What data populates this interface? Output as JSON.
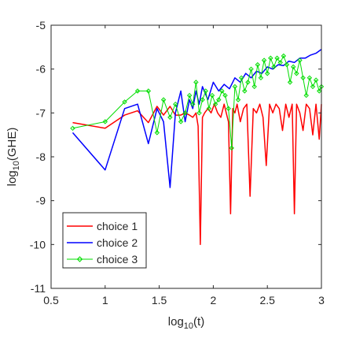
{
  "chart_data": {
    "type": "line",
    "xlabel_base": "log",
    "xlabel_sub": "10",
    "xlabel_rest": "(t)",
    "ylabel_base": "log",
    "ylabel_sub": "10",
    "ylabel_rest": "(GHE)",
    "xlim": [
      0.5,
      3
    ],
    "ylim": [
      -11,
      -5
    ],
    "xticks": [
      "0.5",
      "1",
      "1.5",
      "2",
      "2.5",
      "3"
    ],
    "xtick_values": [
      0.5,
      1,
      1.5,
      2,
      2.5,
      3
    ],
    "yticks": [
      "-5",
      "-6",
      "-7",
      "-8",
      "-9",
      "-10",
      "-11"
    ],
    "ytick_values": [
      -5,
      -6,
      -7,
      -8,
      -9,
      -10,
      -11
    ],
    "grid": false,
    "legend_position": "bottom-left",
    "series": [
      {
        "name": "choice 1",
        "color": "#ff0000",
        "marker": "none",
        "x": [
          0.7,
          1.0,
          1.18,
          1.3,
          1.4,
          1.48,
          1.54,
          1.6,
          1.65,
          1.7,
          1.74,
          1.78,
          1.81,
          1.84,
          1.86,
          1.88,
          1.9,
          1.92,
          1.95,
          1.98,
          2.01,
          2.04,
          2.07,
          2.1,
          2.12,
          2.14,
          2.16,
          2.18,
          2.2,
          2.22,
          2.25,
          2.28,
          2.31,
          2.34,
          2.37,
          2.4,
          2.43,
          2.46,
          2.49,
          2.52,
          2.55,
          2.58,
          2.61,
          2.64,
          2.67,
          2.7,
          2.73,
          2.75,
          2.77,
          2.8,
          2.83,
          2.86,
          2.89,
          2.92,
          2.95,
          2.98,
          3.0
        ],
        "y": [
          -7.22,
          -7.35,
          -7.05,
          -6.95,
          -7.22,
          -6.85,
          -7.05,
          -6.85,
          -7.05,
          -7.05,
          -7.0,
          -7.05,
          -7.1,
          -7.0,
          -7.3,
          -10.0,
          -7.1,
          -7.0,
          -6.9,
          -7.0,
          -6.8,
          -7.0,
          -7.1,
          -6.8,
          -7.0,
          -7.2,
          -9.3,
          -6.9,
          -7.0,
          -6.8,
          -7.2,
          -6.9,
          -6.8,
          -8.9,
          -6.9,
          -7.0,
          -6.8,
          -7.1,
          -8.2,
          -6.8,
          -7.0,
          -6.8,
          -6.9,
          -7.4,
          -6.8,
          -7.1,
          -6.8,
          -9.3,
          -6.8,
          -7.0,
          -7.4,
          -6.8,
          -6.9,
          -7.5,
          -6.8,
          -7.6,
          -6.8
        ]
      },
      {
        "name": "choice 2",
        "color": "#0000ff",
        "marker": "none",
        "x": [
          0.7,
          1.0,
          1.18,
          1.3,
          1.4,
          1.48,
          1.54,
          1.6,
          1.65,
          1.7,
          1.74,
          1.78,
          1.81,
          1.84,
          1.87,
          1.9,
          1.95,
          2.0,
          2.05,
          2.1,
          2.15,
          2.2,
          2.25,
          2.3,
          2.35,
          2.4,
          2.45,
          2.5,
          2.55,
          2.6,
          2.65,
          2.7,
          2.75,
          2.8,
          2.85,
          2.9,
          2.95,
          3.0
        ],
        "y": [
          -7.45,
          -8.3,
          -6.9,
          -6.8,
          -7.7,
          -6.9,
          -7.2,
          -8.7,
          -7.0,
          -6.5,
          -7.2,
          -6.7,
          -6.9,
          -6.5,
          -6.8,
          -6.4,
          -6.7,
          -6.3,
          -6.5,
          -6.35,
          -6.45,
          -6.2,
          -6.3,
          -6.1,
          -6.2,
          -6.05,
          -6.1,
          -5.95,
          -6.0,
          -5.9,
          -5.92,
          -5.82,
          -5.85,
          -5.75,
          -5.75,
          -5.68,
          -5.64,
          -5.55
        ]
      },
      {
        "name": "choice 3",
        "color": "#00dd00",
        "marker": "diamond",
        "x": [
          0.7,
          1.0,
          1.18,
          1.3,
          1.4,
          1.48,
          1.54,
          1.6,
          1.65,
          1.7,
          1.74,
          1.78,
          1.81,
          1.84,
          1.87,
          1.9,
          1.93,
          1.96,
          1.99,
          2.02,
          2.05,
          2.08,
          2.11,
          2.14,
          2.17,
          2.2,
          2.23,
          2.26,
          2.29,
          2.32,
          2.35,
          2.38,
          2.41,
          2.44,
          2.47,
          2.5,
          2.53,
          2.56,
          2.59,
          2.62,
          2.65,
          2.68,
          2.71,
          2.74,
          2.77,
          2.8,
          2.83,
          2.86,
          2.89,
          2.92,
          2.95,
          2.98,
          3.0
        ],
        "y": [
          -7.35,
          -7.2,
          -6.75,
          -6.5,
          -6.5,
          -7.45,
          -6.7,
          -7.1,
          -6.8,
          -7.2,
          -7.0,
          -6.6,
          -6.8,
          -6.3,
          -7.0,
          -6.7,
          -6.5,
          -6.9,
          -6.6,
          -6.8,
          -6.7,
          -6.5,
          -6.6,
          -6.9,
          -7.8,
          -6.4,
          -6.7,
          -6.2,
          -6.5,
          -6.3,
          -6.0,
          -6.4,
          -5.9,
          -6.2,
          -5.8,
          -6.1,
          -5.75,
          -5.95,
          -5.75,
          -5.85,
          -5.7,
          -5.9,
          -6.3,
          -5.95,
          -6.1,
          -5.8,
          -6.2,
          -6.6,
          -6.2,
          -6.4,
          -6.25,
          -6.5,
          -6.4
        ]
      }
    ]
  }
}
